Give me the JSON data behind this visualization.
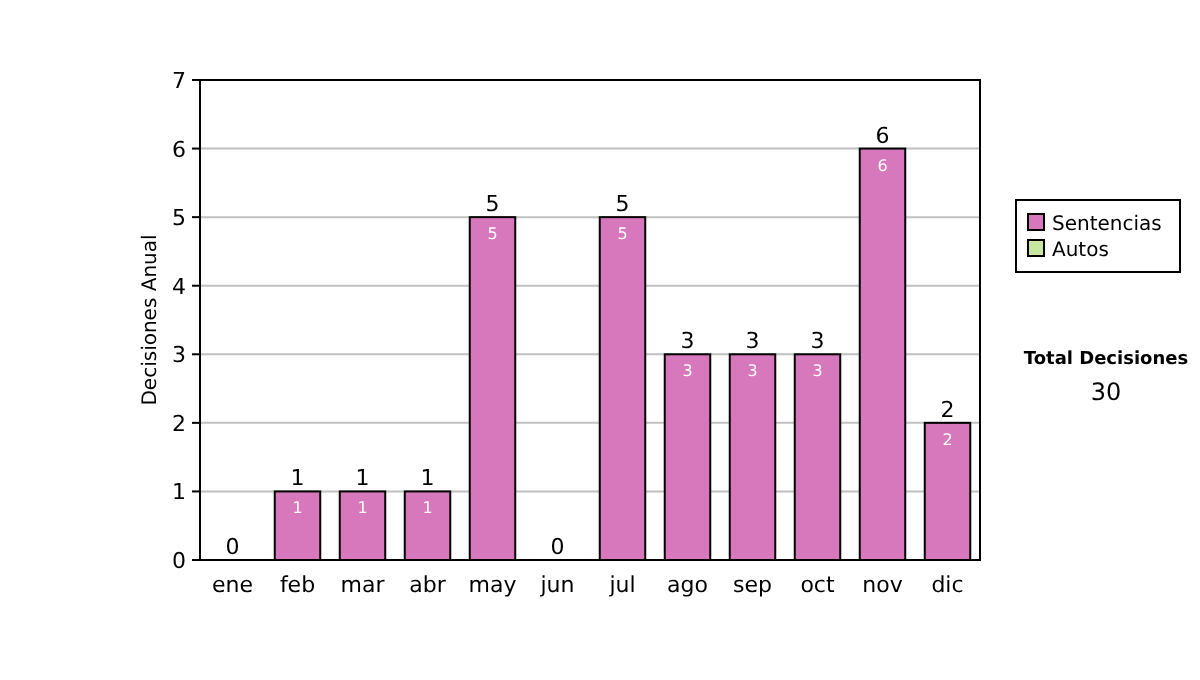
{
  "chart_data": {
    "type": "bar",
    "ylabel": "Decisiones Anual",
    "categories": [
      "ene",
      "feb",
      "mar",
      "abr",
      "may",
      "jun",
      "jul",
      "ago",
      "sep",
      "oct",
      "nov",
      "dic"
    ],
    "series": [
      {
        "name": "Sentencias",
        "color": "#d878bc",
        "values": [
          0,
          1,
          1,
          1,
          5,
          0,
          5,
          3,
          3,
          3,
          6,
          2
        ],
        "value_labels": [
          null,
          "1",
          "1",
          "1",
          "5",
          null,
          "5",
          "3",
          "3",
          "3",
          "6",
          "2"
        ]
      },
      {
        "name": "Autos",
        "color": "#c8e6a0",
        "values": [
          0,
          0,
          0,
          0,
          0,
          0,
          0,
          0,
          0,
          0,
          0,
          0
        ]
      }
    ],
    "stacked": true,
    "ylim": [
      0,
      7
    ],
    "yticks": [
      0,
      1,
      2,
      3,
      4,
      5,
      6,
      7
    ],
    "grid": "y",
    "legend": "right",
    "totals": [
      "0",
      "1",
      "1",
      "1",
      "5",
      "0",
      "5",
      "3",
      "3",
      "3",
      "6",
      "2"
    ],
    "annotations": [
      "Total Decisiones",
      "30"
    ]
  }
}
